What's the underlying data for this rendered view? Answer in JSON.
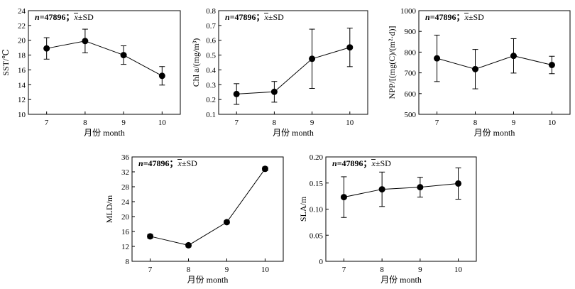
{
  "chart_data": [
    {
      "type": "line",
      "annotation": {
        "n": "n",
        "rest": "=47896；",
        "xbar": "x",
        "sd": "±SD"
      },
      "xlabel": "月份 month",
      "ylabel": "SST/℃",
      "categories": [
        "7",
        "8",
        "9",
        "10"
      ],
      "x": [
        7,
        8,
        9,
        10
      ],
      "ylim": [
        10,
        24
      ],
      "yticks": [
        "10",
        "12",
        "14",
        "16",
        "18",
        "20",
        "22",
        "24"
      ],
      "series": [
        {
          "values": [
            18.9,
            19.9,
            18.0,
            15.2
          ],
          "errors": [
            1.45,
            1.6,
            1.25,
            1.25
          ]
        }
      ],
      "grid": false,
      "marker_color": "#000000"
    },
    {
      "type": "line",
      "annotation": {
        "n": "n",
        "rest": "=47896；",
        "xbar": "x",
        "sd": "±SD"
      },
      "xlabel": "月份 month",
      "ylabel": "Chl a/(mg/m³)",
      "categories": [
        "7",
        "8",
        "9",
        "10"
      ],
      "x": [
        7,
        8,
        9,
        10
      ],
      "ylim": [
        0.1,
        0.8
      ],
      "yticks": [
        "0.1",
        "0.2",
        "0.3",
        "0.4",
        "0.5",
        "0.6",
        "0.7",
        "0.8"
      ],
      "series": [
        {
          "values": [
            0.237,
            0.252,
            0.475,
            0.552
          ],
          "errors": [
            0.07,
            0.07,
            0.2,
            0.13
          ]
        }
      ],
      "grid": false,
      "marker_color": "#000000"
    },
    {
      "type": "line",
      "annotation": {
        "n": "n",
        "rest": "=47896；",
        "xbar": "x",
        "sd": "±SD"
      },
      "xlabel": "月份 month",
      "ylabel": "NPP/[(mg(C)/(m²·d)]",
      "categories": [
        "7",
        "8",
        "9",
        "10"
      ],
      "x": [
        7,
        8,
        9,
        10
      ],
      "ylim": [
        500,
        1000
      ],
      "yticks": [
        "500",
        "600",
        "700",
        "800",
        "900",
        "1000"
      ],
      "series": [
        {
          "values": [
            770,
            718,
            782,
            738
          ],
          "errors": [
            112,
            95,
            83,
            42
          ]
        }
      ],
      "grid": false,
      "marker_color": "#000000"
    },
    {
      "type": "line",
      "annotation": {
        "n": "n",
        "rest": "=47896；",
        "xbar": "x",
        "sd": "±SD"
      },
      "xlabel": "月份 month",
      "ylabel": "MLD/m",
      "categories": [
        "7",
        "8",
        "9",
        "10"
      ],
      "x": [
        7,
        8,
        9,
        10
      ],
      "ylim": [
        8,
        36
      ],
      "yticks": [
        "8",
        "12",
        "16",
        "20",
        "24",
        "28",
        "32",
        "36"
      ],
      "series": [
        {
          "values": [
            14.7,
            12.3,
            18.5,
            32.8
          ],
          "errors": [
            0.5,
            0.45,
            0.4,
            0.5
          ]
        }
      ],
      "grid": false,
      "marker_color": "#000000"
    },
    {
      "type": "line",
      "annotation": {
        "n": "n",
        "rest": "=47896；",
        "xbar": "x",
        "sd": "±SD"
      },
      "xlabel": "月份 month",
      "ylabel": "SLA/m",
      "categories": [
        "7",
        "8",
        "9",
        "10"
      ],
      "x": [
        7,
        8,
        9,
        10
      ],
      "ylim": [
        0,
        0.2
      ],
      "yticks": [
        "0",
        "0.05",
        "0.10",
        "0.15",
        "0.20"
      ],
      "series": [
        {
          "values": [
            0.123,
            0.138,
            0.142,
            0.149
          ],
          "errors": [
            0.039,
            0.033,
            0.019,
            0.03
          ]
        }
      ],
      "grid": false,
      "marker_color": "#000000"
    }
  ]
}
